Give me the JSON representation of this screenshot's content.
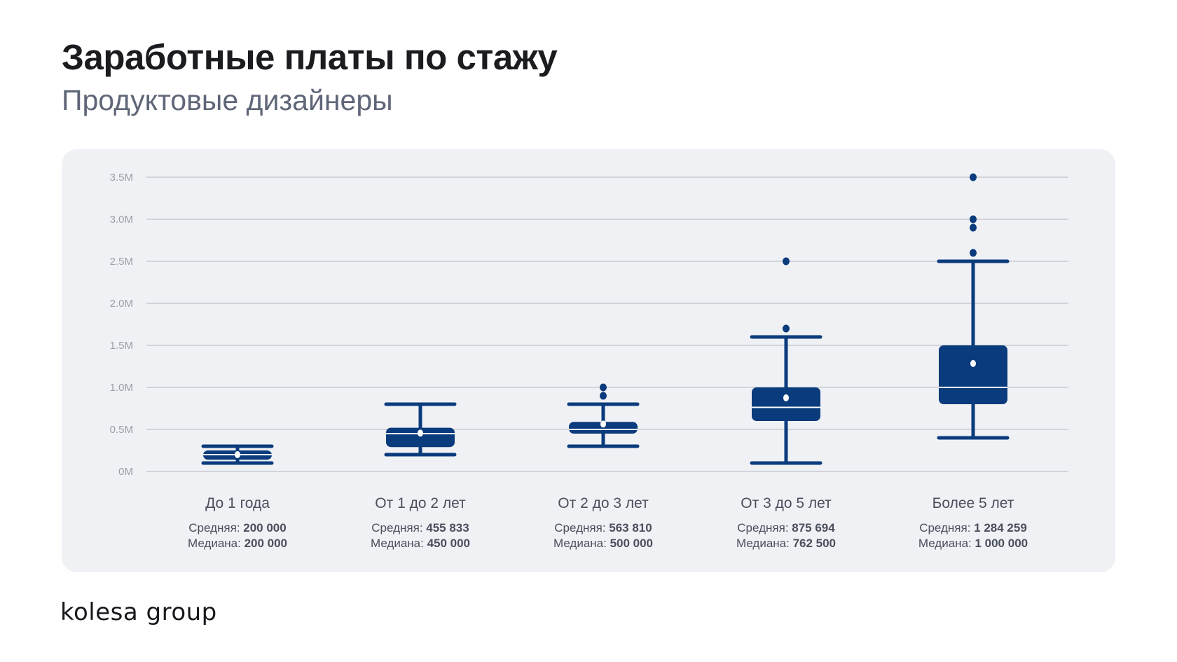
{
  "header": {
    "title": "Заработные платы по стажу",
    "subtitle": "Продуктовые дизайнеры"
  },
  "footer": {
    "logo_text": "kolesa group"
  },
  "colors": {
    "box": "#0a3b7c",
    "grid": "#c8cbd1",
    "card": "#eff1f5",
    "tick_text": "#9a9ea7",
    "label_text": "#4a4f5c"
  },
  "chart_data": {
    "type": "box",
    "title": "Заработные платы по стажу",
    "subtitle": "Продуктовые дизайнеры",
    "ylim": [
      0,
      3500000
    ],
    "yticks": [
      0,
      500000,
      1000000,
      1500000,
      2000000,
      2500000,
      3000000,
      3500000
    ],
    "ytick_labels": [
      "0M",
      "0.5M",
      "1.0M",
      "1.5M",
      "2.0M",
      "2.5M",
      "3.0M",
      "3.5M"
    ],
    "grid": true,
    "mean_label": "Средняя:",
    "median_label": "Медиана:",
    "categories": [
      {
        "name": "До 1 года",
        "mean_text": "200 000",
        "median_text": "200 000",
        "min": 100000,
        "q1": 140000,
        "median": 200000,
        "q3": 250000,
        "max": 300000,
        "mean": 200000,
        "outliers": []
      },
      {
        "name": "От 1 до 2 лет",
        "mean_text": "455 833",
        "median_text": "450 000",
        "min": 200000,
        "q1": 290000,
        "median": 450000,
        "q3": 520000,
        "max": 800000,
        "mean": 455833,
        "outliers": []
      },
      {
        "name": "От 2 до 3 лет",
        "mean_text": "563 810",
        "median_text": "500 000",
        "min": 300000,
        "q1": 450000,
        "median": 500000,
        "q3": 590000,
        "max": 800000,
        "mean": 563810,
        "outliers": [
          900000,
          1000000
        ]
      },
      {
        "name": "От 3 до 5 лет",
        "mean_text": "875 694",
        "median_text": "762 500",
        "min": 100000,
        "q1": 600000,
        "median": 762500,
        "q3": 1000000,
        "max": 1600000,
        "mean": 875694,
        "outliers": [
          1700000,
          2500000
        ]
      },
      {
        "name": "Более 5 лет",
        "mean_text": "1 284 259",
        "median_text": "1 000 000",
        "min": 400000,
        "q1": 800000,
        "median": 1000000,
        "q3": 1500000,
        "max": 2500000,
        "mean": 1284259,
        "outliers": [
          2600000,
          2900000,
          3000000,
          3500000
        ]
      }
    ]
  }
}
